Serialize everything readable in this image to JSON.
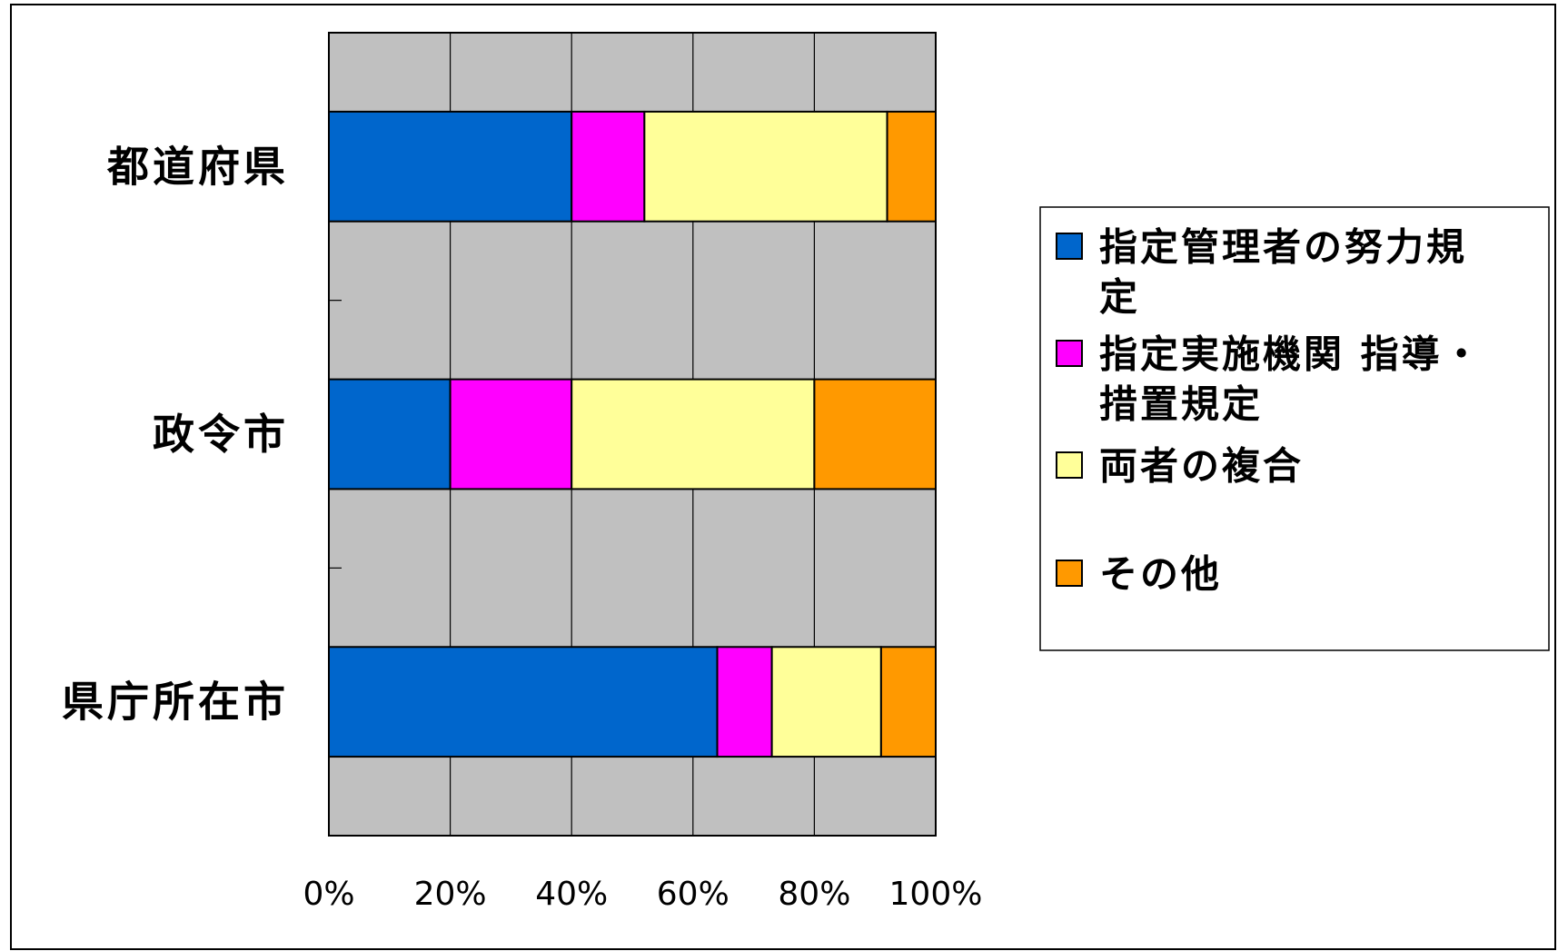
{
  "chart_data": {
    "type": "bar",
    "orientation": "horizontal",
    "stacked": "percent",
    "categories": [
      "都道府県",
      "政令市",
      "県庁所在市"
    ],
    "series": [
      {
        "name": "指定管理者の努力規定",
        "color": "#0066CC",
        "values": [
          40,
          20,
          64
        ]
      },
      {
        "name": "指定実施機関 指導・措置規定",
        "color": "#FF00FF",
        "values": [
          12,
          20,
          9
        ]
      },
      {
        "name": "両者の複合",
        "color": "#FFFF99",
        "values": [
          40,
          40,
          18
        ]
      },
      {
        "name": "その他",
        "color": "#FF9900",
        "values": [
          8,
          20,
          9
        ]
      }
    ],
    "xlim": [
      0,
      100
    ],
    "xticks": [
      "0%",
      "20%",
      "40%",
      "60%",
      "80%",
      "100%"
    ],
    "plot_background": "#C0C0C0",
    "grid": true,
    "legend": "right"
  },
  "legend_lines": [
    [
      "指定管理者の努力規",
      "定"
    ],
    [
      "指定実施機関 指導・",
      "措置規定"
    ],
    [
      "両者の複合"
    ],
    [
      "その他"
    ]
  ]
}
